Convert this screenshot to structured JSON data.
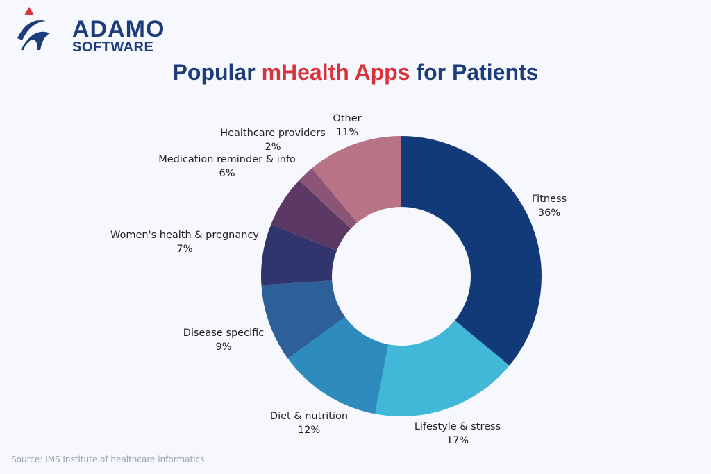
{
  "logo": {
    "line1": "ADAMO",
    "line2": "SOFTWARE",
    "colors": {
      "primary": "#1c3d79",
      "accent": "#d8323a"
    }
  },
  "title": {
    "part1": "Popular ",
    "highlight": "mHealth Apps",
    "part2": " for Patients"
  },
  "source": "Source: IMS Institute of healthcare informatics",
  "chart_data": {
    "type": "pie",
    "donut": true,
    "title": "Popular mHealth Apps for Patients",
    "start": "top, clockwise",
    "slices": [
      {
        "label": "Fitness",
        "value": 36,
        "display": "36%",
        "color": "#133a78"
      },
      {
        "label": "Lifestyle & stress",
        "value": 17,
        "display": "17%",
        "color": "#41b8d8"
      },
      {
        "label": "Diet & nutrition",
        "value": 12,
        "display": "12%",
        "color": "#2d8bbd"
      },
      {
        "label": "Disease specific",
        "value": 9,
        "display": "9%",
        "color": "#2d5f99"
      },
      {
        "label": "Women's health & pregnancy",
        "value": 7,
        "display": "7%",
        "color": "#30356e"
      },
      {
        "label": "Medication reminder & info",
        "value": 6,
        "display": "6%",
        "color": "#5c3865"
      },
      {
        "label": "Healthcare providers",
        "value": 2,
        "display": "2%",
        "color": "#8a5577"
      },
      {
        "label": "Other",
        "value": 11,
        "display": "11%",
        "color": "#b87386"
      }
    ]
  }
}
